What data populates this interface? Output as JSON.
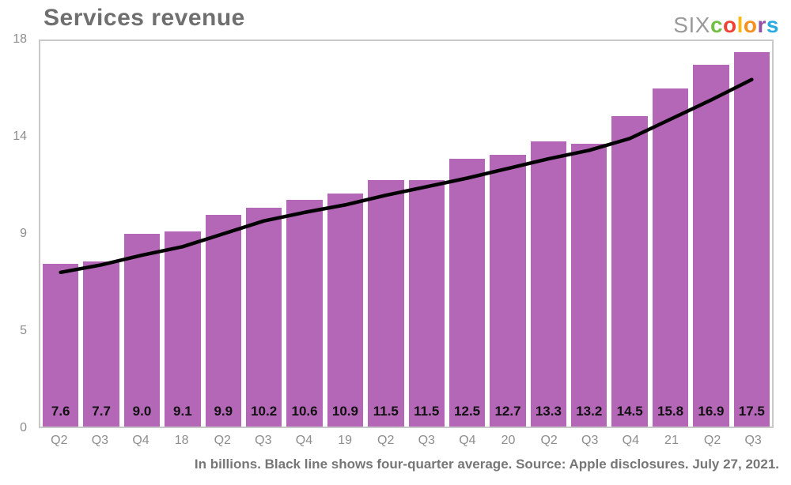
{
  "header": {
    "title": "Services revenue",
    "logo": {
      "prefix": "SIX",
      "letters": [
        {
          "char": "c",
          "color": "#72BF44"
        },
        {
          "char": "o",
          "color": "#EF4136"
        },
        {
          "char": "l",
          "color": "#FDB913"
        },
        {
          "char": "o",
          "color": "#F6911E"
        },
        {
          "char": "r",
          "color": "#9351A6"
        },
        {
          "char": "s",
          "color": "#27AAE1"
        }
      ]
    }
  },
  "chart_data": {
    "type": "bar",
    "title": "Services revenue",
    "categories": [
      "Q2",
      "Q3",
      "Q4",
      "18",
      "Q2",
      "Q3",
      "Q4",
      "19",
      "Q2",
      "Q3",
      "Q4",
      "20",
      "Q2",
      "Q3",
      "Q4",
      "21",
      "Q2",
      "Q3"
    ],
    "series": [
      {
        "name": "Services revenue (billions)",
        "type": "bar",
        "color": "#B466B7",
        "values": [
          7.6,
          7.7,
          9.0,
          9.1,
          9.9,
          10.2,
          10.6,
          10.9,
          11.5,
          11.5,
          12.5,
          12.7,
          13.3,
          13.2,
          14.5,
          15.8,
          16.9,
          17.5
        ]
      },
      {
        "name": "Four-quarter average",
        "type": "line",
        "color": "#000000",
        "values": [
          7.2,
          7.55,
          8.0,
          8.4,
          9.0,
          9.6,
          10.0,
          10.35,
          10.8,
          11.2,
          11.6,
          12.05,
          12.5,
          12.9,
          13.45,
          14.35,
          15.25,
          16.2
        ]
      }
    ],
    "ylim": [
      0,
      18
    ],
    "y_ticks": [
      {
        "value": 0,
        "label": "0"
      },
      {
        "value": 4.5,
        "label": "5"
      },
      {
        "value": 9,
        "label": "9"
      },
      {
        "value": 13.5,
        "label": "14"
      },
      {
        "value": 18,
        "label": "18"
      }
    ],
    "grid": false,
    "legend": "none",
    "bar_label_decimals": 1,
    "caption": "In billions. Black line shows four-quarter average. Source: Apple disclosures. July 27, 2021."
  }
}
